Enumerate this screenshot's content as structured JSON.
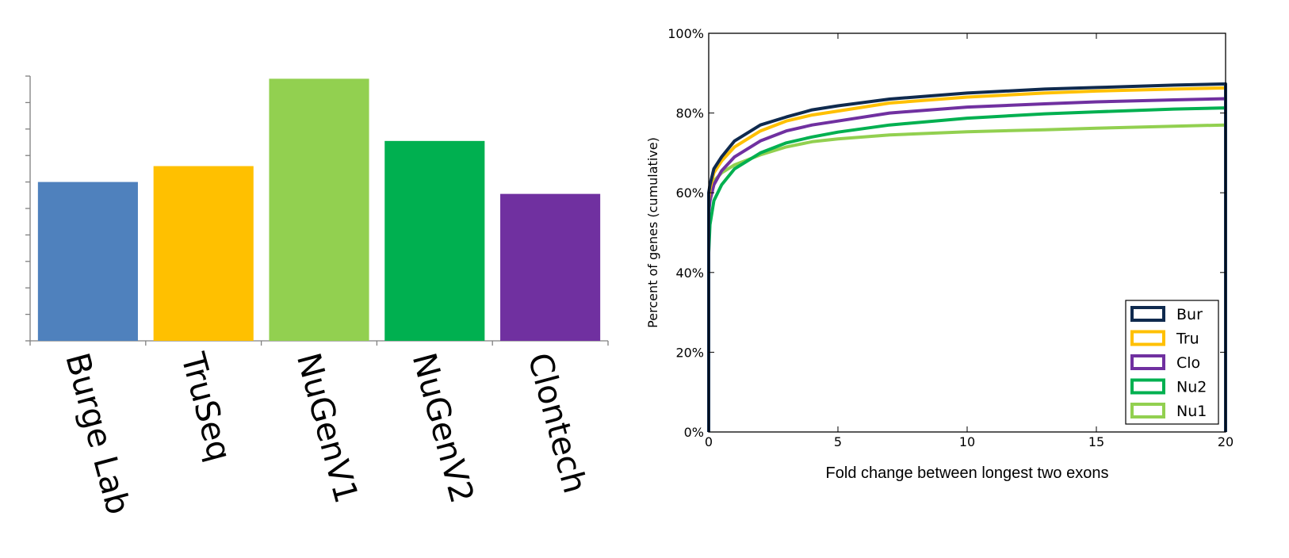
{
  "chart_data": [
    {
      "type": "bar",
      "categories": [
        "Burge Lab",
        "TruSeq",
        "NuGenV1",
        "NuGenV2",
        "Clontech"
      ],
      "values": [
        6.0,
        6.6,
        9.9,
        7.55,
        5.55
      ],
      "colors": [
        "#4f81bd",
        "#ffc000",
        "#92d050",
        "#00b050",
        "#7030a0"
      ],
      "ylim": [
        0,
        10
      ],
      "yticks": 10,
      "tick_labels_visible": false,
      "category_label_rotation_deg": 75
    },
    {
      "type": "line",
      "xlabel": "Fold change between longest two exons",
      "ylabel": "Percent of genes (cumulative)",
      "xlim": [
        0,
        20
      ],
      "ylim": [
        0,
        100
      ],
      "xticks": [
        "0",
        "5",
        "10",
        "15",
        "20"
      ],
      "yticks": [
        "0%",
        "20%",
        "40%",
        "60%",
        "80%",
        "100%"
      ],
      "legend_position": "lower-right",
      "series": [
        {
          "name": "Bur",
          "color": "#0f2a4e",
          "x": [
            0,
            0.05,
            0.2,
            0.5,
            1,
            2,
            3,
            4,
            5,
            7,
            10,
            13,
            15,
            18,
            20
          ],
          "y": [
            60,
            62,
            66,
            69,
            73,
            77,
            79,
            80.8,
            81.8,
            83.5,
            85,
            86,
            86.4,
            87,
            87.3
          ]
        },
        {
          "name": "Tru",
          "color": "#ffc000",
          "x": [
            0,
            0.05,
            0.2,
            0.5,
            1,
            2,
            3,
            4,
            5,
            7,
            10,
            13,
            15,
            18,
            20
          ],
          "y": [
            58,
            61,
            65,
            68,
            71.5,
            75.5,
            78,
            79.5,
            80.5,
            82.5,
            84,
            85,
            85.5,
            86,
            86.3
          ]
        },
        {
          "name": "Clo",
          "color": "#7030a0",
          "x": [
            0,
            0.05,
            0.2,
            0.5,
            1,
            2,
            3,
            4,
            5,
            7,
            10,
            13,
            15,
            18,
            20
          ],
          "y": [
            55,
            58,
            62,
            65.5,
            69,
            73,
            75.5,
            77,
            78,
            80,
            81.5,
            82.3,
            82.8,
            83.3,
            83.6
          ]
        },
        {
          "name": "Nu2",
          "color": "#00b050",
          "x": [
            0,
            0.05,
            0.2,
            0.5,
            1,
            2,
            3,
            4,
            5,
            7,
            10,
            13,
            15,
            18,
            20
          ],
          "y": [
            45,
            52,
            58,
            62,
            66,
            70,
            72.5,
            74,
            75.2,
            77,
            78.7,
            79.8,
            80.3,
            81,
            81.3
          ]
        },
        {
          "name": "Nu1",
          "color": "#92d050",
          "x": [
            0,
            0.05,
            0.2,
            0.5,
            1,
            2,
            3,
            4,
            5,
            7,
            10,
            13,
            15,
            18,
            20
          ],
          "y": [
            57,
            60,
            63,
            65,
            67,
            69.5,
            71.5,
            72.8,
            73.5,
            74.5,
            75.3,
            75.8,
            76.2,
            76.7,
            77
          ]
        }
      ]
    }
  ]
}
